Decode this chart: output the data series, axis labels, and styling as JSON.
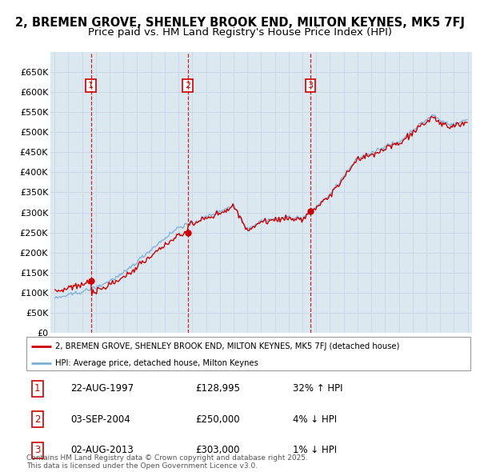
{
  "title1": "2, BREMEN GROVE, SHENLEY BROOK END, MILTON KEYNES, MK5 7FJ",
  "title2": "Price paid vs. HM Land Registry's House Price Index (HPI)",
  "bg_color": "#ffffff",
  "grid_color": "#c8d8e8",
  "plot_bg": "#dce8f0",
  "red_color": "#cc0000",
  "blue_color": "#7aaed6",
  "sale_dates": [
    1997.64,
    2004.67,
    2013.58
  ],
  "sale_prices": [
    128995,
    250000,
    303000
  ],
  "sale_labels": [
    "1",
    "2",
    "3"
  ],
  "legend1": "2, BREMEN GROVE, SHENLEY BROOK END, MILTON KEYNES, MK5 7FJ (detached house)",
  "legend2": "HPI: Average price, detached house, Milton Keynes",
  "table_data": [
    [
      "1",
      "22-AUG-1997",
      "£128,995",
      "32% ↑ HPI"
    ],
    [
      "2",
      "03-SEP-2004",
      "£250,000",
      "4% ↓ HPI"
    ],
    [
      "3",
      "02-AUG-2013",
      "£303,000",
      "1% ↓ HPI"
    ]
  ],
  "footer": "Contains HM Land Registry data © Crown copyright and database right 2025.\nThis data is licensed under the Open Government Licence v3.0.",
  "ylim": [
    0,
    700000
  ],
  "yticks": [
    0,
    50000,
    100000,
    150000,
    200000,
    250000,
    300000,
    350000,
    400000,
    450000,
    500000,
    550000,
    600000,
    650000
  ],
  "xlim": [
    1994.7,
    2025.3
  ],
  "title_fontsize": 10.5,
  "subtitle_fontsize": 9.5
}
